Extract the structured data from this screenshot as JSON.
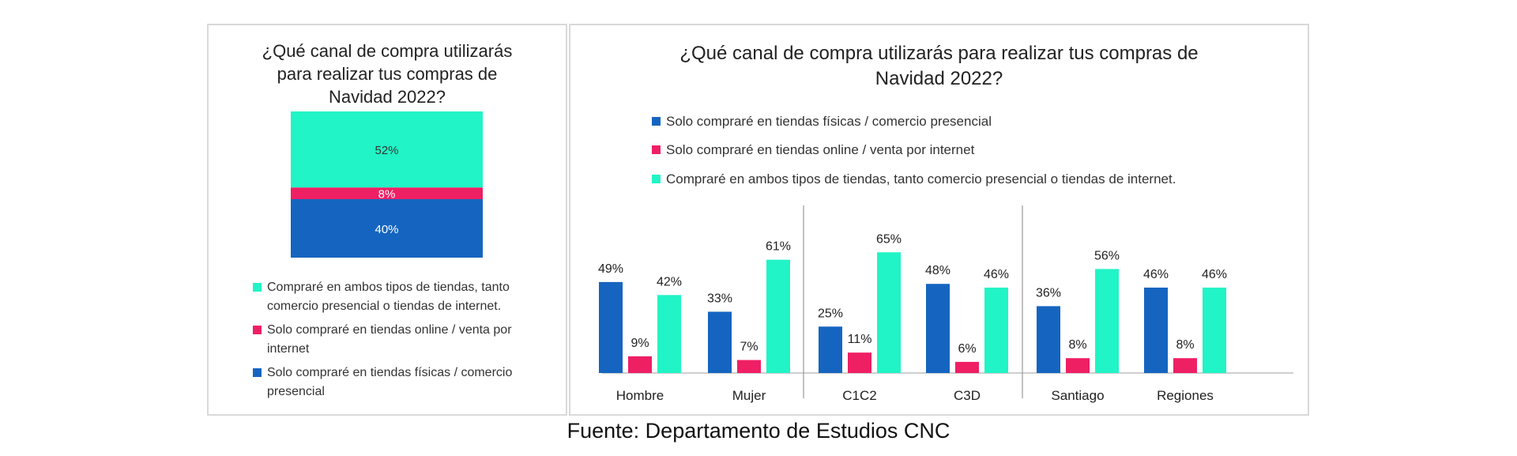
{
  "colors": {
    "fisica": "#1565c0",
    "online": "#ef1f64",
    "ambos": "#21f4c6",
    "axis": "#bfbfbf"
  },
  "left": {
    "title_lines": [
      "¿Qué canal de compra utilizarás",
      "para realizar tus compras de",
      "Navidad 2022?"
    ],
    "legend": [
      {
        "lines": [
          "Compraré en ambos tipos de tiendas, tanto",
          "comercio presencial o tiendas de internet."
        ],
        "color": "#21f4c6"
      },
      {
        "lines": [
          "Solo compraré en tiendas online / venta por",
          "internet"
        ],
        "color": "#ef1f64"
      },
      {
        "lines": [
          "Solo compraré en tiendas físicas / comercio",
          "presencial"
        ],
        "color": "#1565c0"
      }
    ]
  },
  "right": {
    "title_lines": [
      "¿Qué canal de compra utilizarás para realizar tus compras de",
      "Navidad 2022?"
    ],
    "legend": [
      {
        "label": "Solo compraré en tiendas físicas / comercio presencial",
        "color": "#1565c0"
      },
      {
        "label": "Solo compraré en tiendas online / venta por internet",
        "color": "#ef1f64"
      },
      {
        "label": "Compraré en ambos tipos de tiendas, tanto comercio presencial o tiendas de internet.",
        "color": "#21f4c6"
      }
    ]
  },
  "chart_data": [
    {
      "type": "bar",
      "stacked": true,
      "categories": [
        ""
      ],
      "series": [
        {
          "name": "Solo compraré en tiendas físicas / comercio presencial",
          "values": [
            40
          ],
          "label": "40%"
        },
        {
          "name": "Solo compraré en tiendas online / venta por internet",
          "values": [
            8
          ],
          "label": "8%"
        },
        {
          "name": "Compraré en ambos tipos de tiendas, tanto comercio presencial o tiendas de internet.",
          "values": [
            52
          ],
          "label": "52%"
        }
      ],
      "ylim": [
        0,
        100
      ],
      "legend": "bottom"
    },
    {
      "type": "bar",
      "categories": [
        "Hombre",
        "Mujer",
        "C1C2",
        "C3D",
        "Santiago",
        "Regiones"
      ],
      "series": [
        {
          "name": "Solo compraré en tiendas físicas / comercio presencial",
          "values": [
            49,
            33,
            25,
            48,
            36,
            46
          ],
          "labels": [
            "49%",
            "33%",
            "25%",
            "48%",
            "36%",
            "46%"
          ]
        },
        {
          "name": "Solo compraré en tiendas online / venta por internet",
          "values": [
            9,
            7,
            11,
            6,
            8,
            8
          ],
          "labels": [
            "9%",
            "7%",
            "11%",
            "6%",
            "8%",
            "8%"
          ]
        },
        {
          "name": "Compraré en ambos tipos de tiendas, tanto comercio presencial o tiendas de internet.",
          "values": [
            42,
            61,
            65,
            46,
            56,
            46
          ],
          "labels": [
            "42%",
            "61%",
            "65%",
            "46%",
            "56%",
            "46%"
          ]
        }
      ],
      "groups": [
        [
          "Hombre",
          "Mujer"
        ],
        [
          "C1C2",
          "C3D"
        ],
        [
          "Santiago",
          "Regiones"
        ]
      ],
      "ylim": [
        0,
        65
      ],
      "grid": false,
      "legend": "top-left"
    }
  ],
  "source": "Fuente: Departamento de Estudios CNC"
}
